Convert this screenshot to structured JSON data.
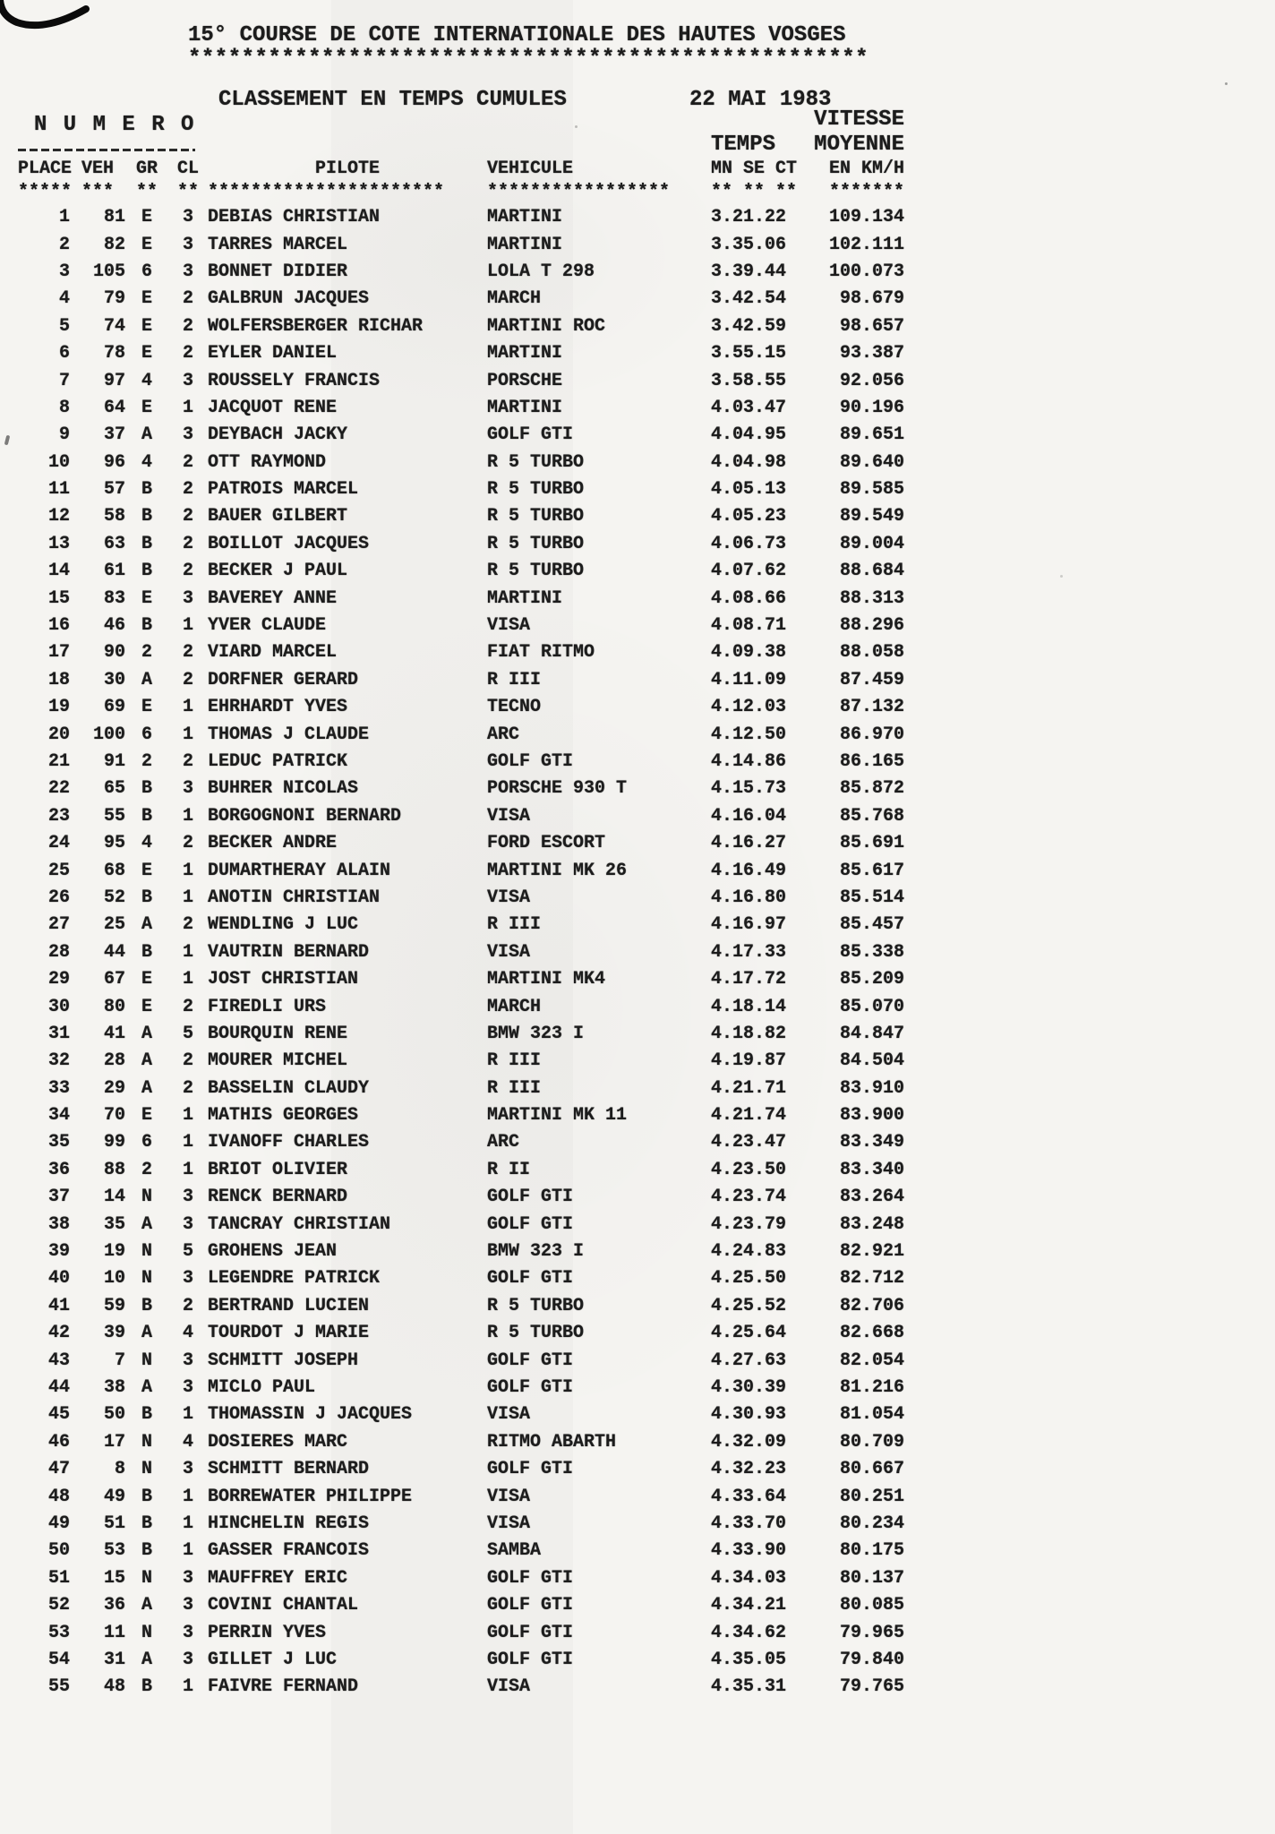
{
  "page": {
    "title": "15° COURSE DE COTE INTERNATIONALE DES HAUTES VOSGES",
    "title_underline": "***************************************************",
    "subtitle": "CLASSEMENT EN TEMPS CUMULES",
    "date": "22 MAI 1983",
    "numero_label": "N U M E R O",
    "temps_label": "TEMPS",
    "vitesse_label": "VITESSE",
    "moyenne_label": "MOYENNE",
    "col_headers": {
      "place": "PLACE",
      "veh": "VEH",
      "gr": "GR",
      "cl": "CL",
      "pilote": "PILOTE",
      "vehicule": "VEHICULE",
      "temps": "MN SE CT",
      "vitesse": "EN KM/H"
    },
    "separator_row": {
      "place": "*****",
      "veh": "***",
      "gr": "**",
      "cl": "**",
      "pilote": "**********************",
      "vehicule": "*****************",
      "temps": "** ** **",
      "vitesse": "*******"
    }
  },
  "results": [
    {
      "place": "1",
      "veh": "81",
      "gr": "E",
      "cl": "3",
      "pilote": "DEBIAS CHRISTIAN",
      "vehicule": "MARTINI",
      "temps": "3.21.22",
      "vitesse": "109.134"
    },
    {
      "place": "2",
      "veh": "82",
      "gr": "E",
      "cl": "3",
      "pilote": "TARRES MARCEL",
      "vehicule": "MARTINI",
      "temps": "3.35.06",
      "vitesse": "102.111"
    },
    {
      "place": "3",
      "veh": "105",
      "gr": "6",
      "cl": "3",
      "pilote": "BONNET DIDIER",
      "vehicule": "LOLA T 298",
      "temps": "3.39.44",
      "vitesse": "100.073"
    },
    {
      "place": "4",
      "veh": "79",
      "gr": "E",
      "cl": "2",
      "pilote": "GALBRUN JACQUES",
      "vehicule": "MARCH",
      "temps": "3.42.54",
      "vitesse": "98.679"
    },
    {
      "place": "5",
      "veh": "74",
      "gr": "E",
      "cl": "2",
      "pilote": "WOLFERSBERGER RICHAR",
      "vehicule": "MARTINI ROC",
      "temps": "3.42.59",
      "vitesse": "98.657"
    },
    {
      "place": "6",
      "veh": "78",
      "gr": "E",
      "cl": "2",
      "pilote": "EYLER DANIEL",
      "vehicule": "MARTINI",
      "temps": "3.55.15",
      "vitesse": "93.387"
    },
    {
      "place": "7",
      "veh": "97",
      "gr": "4",
      "cl": "3",
      "pilote": "ROUSSELY FRANCIS",
      "vehicule": "PORSCHE",
      "temps": "3.58.55",
      "vitesse": "92.056"
    },
    {
      "place": "8",
      "veh": "64",
      "gr": "E",
      "cl": "1",
      "pilote": "JACQUOT RENE",
      "vehicule": "MARTINI",
      "temps": "4.03.47",
      "vitesse": "90.196"
    },
    {
      "place": "9",
      "veh": "37",
      "gr": "A",
      "cl": "3",
      "pilote": "DEYBACH JACKY",
      "vehicule": "GOLF GTI",
      "temps": "4.04.95",
      "vitesse": "89.651"
    },
    {
      "place": "10",
      "veh": "96",
      "gr": "4",
      "cl": "2",
      "pilote": "OTT RAYMOND",
      "vehicule": "R 5 TURBO",
      "temps": "4.04.98",
      "vitesse": "89.640"
    },
    {
      "place": "11",
      "veh": "57",
      "gr": "B",
      "cl": "2",
      "pilote": "PATROIS MARCEL",
      "vehicule": "R 5 TURBO",
      "temps": "4.05.13",
      "vitesse": "89.585"
    },
    {
      "place": "12",
      "veh": "58",
      "gr": "B",
      "cl": "2",
      "pilote": "BAUER GILBERT",
      "vehicule": "R 5 TURBO",
      "temps": "4.05.23",
      "vitesse": "89.549"
    },
    {
      "place": "13",
      "veh": "63",
      "gr": "B",
      "cl": "2",
      "pilote": "BOILLOT JACQUES",
      "vehicule": "R 5 TURBO",
      "temps": "4.06.73",
      "vitesse": "89.004"
    },
    {
      "place": "14",
      "veh": "61",
      "gr": "B",
      "cl": "2",
      "pilote": "BECKER J PAUL",
      "vehicule": "R 5 TURBO",
      "temps": "4.07.62",
      "vitesse": "88.684"
    },
    {
      "place": "15",
      "veh": "83",
      "gr": "E",
      "cl": "3",
      "pilote": "BAVEREY ANNE",
      "vehicule": "MARTINI",
      "temps": "4.08.66",
      "vitesse": "88.313"
    },
    {
      "place": "16",
      "veh": "46",
      "gr": "B",
      "cl": "1",
      "pilote": "YVER CLAUDE",
      "vehicule": "VISA",
      "temps": "4.08.71",
      "vitesse": "88.296"
    },
    {
      "place": "17",
      "veh": "90",
      "gr": "2",
      "cl": "2",
      "pilote": "VIARD MARCEL",
      "vehicule": "FIAT RITMO",
      "temps": "4.09.38",
      "vitesse": "88.058"
    },
    {
      "place": "18",
      "veh": "30",
      "gr": "A",
      "cl": "2",
      "pilote": "DORFNER GERARD",
      "vehicule": "R III",
      "temps": "4.11.09",
      "vitesse": "87.459"
    },
    {
      "place": "19",
      "veh": "69",
      "gr": "E",
      "cl": "1",
      "pilote": "EHRHARDT YVES",
      "vehicule": "TECNO",
      "temps": "4.12.03",
      "vitesse": "87.132"
    },
    {
      "place": "20",
      "veh": "100",
      "gr": "6",
      "cl": "1",
      "pilote": "THOMAS J CLAUDE",
      "vehicule": "ARC",
      "temps": "4.12.50",
      "vitesse": "86.970"
    },
    {
      "place": "21",
      "veh": "91",
      "gr": "2",
      "cl": "2",
      "pilote": "LEDUC PATRICK",
      "vehicule": "GOLF GTI",
      "temps": "4.14.86",
      "vitesse": "86.165"
    },
    {
      "place": "22",
      "veh": "65",
      "gr": "B",
      "cl": "3",
      "pilote": "BUHRER NICOLAS",
      "vehicule": "PORSCHE 930 T",
      "temps": "4.15.73",
      "vitesse": "85.872"
    },
    {
      "place": "23",
      "veh": "55",
      "gr": "B",
      "cl": "1",
      "pilote": "BORGOGNONI BERNARD",
      "vehicule": "VISA",
      "temps": "4.16.04",
      "vitesse": "85.768"
    },
    {
      "place": "24",
      "veh": "95",
      "gr": "4",
      "cl": "2",
      "pilote": "BECKER ANDRE",
      "vehicule": "FORD ESCORT",
      "temps": "4.16.27",
      "vitesse": "85.691"
    },
    {
      "place": "25",
      "veh": "68",
      "gr": "E",
      "cl": "1",
      "pilote": "DUMARTHERAY ALAIN",
      "vehicule": "MARTINI MK 26",
      "temps": "4.16.49",
      "vitesse": "85.617"
    },
    {
      "place": "26",
      "veh": "52",
      "gr": "B",
      "cl": "1",
      "pilote": "ANOTIN CHRISTIAN",
      "vehicule": "VISA",
      "temps": "4.16.80",
      "vitesse": "85.514"
    },
    {
      "place": "27",
      "veh": "25",
      "gr": "A",
      "cl": "2",
      "pilote": "WENDLING J LUC",
      "vehicule": "R III",
      "temps": "4.16.97",
      "vitesse": "85.457"
    },
    {
      "place": "28",
      "veh": "44",
      "gr": "B",
      "cl": "1",
      "pilote": "VAUTRIN BERNARD",
      "vehicule": "VISA",
      "temps": "4.17.33",
      "vitesse": "85.338"
    },
    {
      "place": "29",
      "veh": "67",
      "gr": "E",
      "cl": "1",
      "pilote": "JOST CHRISTIAN",
      "vehicule": "MARTINI MK4",
      "temps": "4.17.72",
      "vitesse": "85.209"
    },
    {
      "place": "30",
      "veh": "80",
      "gr": "E",
      "cl": "2",
      "pilote": "FIREDLI URS",
      "vehicule": "MARCH",
      "temps": "4.18.14",
      "vitesse": "85.070"
    },
    {
      "place": "31",
      "veh": "41",
      "gr": "A",
      "cl": "5",
      "pilote": "BOURQUIN RENE",
      "vehicule": "BMW 323 I",
      "temps": "4.18.82",
      "vitesse": "84.847"
    },
    {
      "place": "32",
      "veh": "28",
      "gr": "A",
      "cl": "2",
      "pilote": "MOURER MICHEL",
      "vehicule": "R III",
      "temps": "4.19.87",
      "vitesse": "84.504"
    },
    {
      "place": "33",
      "veh": "29",
      "gr": "A",
      "cl": "2",
      "pilote": "BASSELIN CLAUDY",
      "vehicule": "R III",
      "temps": "4.21.71",
      "vitesse": "83.910"
    },
    {
      "place": "34",
      "veh": "70",
      "gr": "E",
      "cl": "1",
      "pilote": "MATHIS GEORGES",
      "vehicule": "MARTINI MK 11",
      "temps": "4.21.74",
      "vitesse": "83.900"
    },
    {
      "place": "35",
      "veh": "99",
      "gr": "6",
      "cl": "1",
      "pilote": "IVANOFF CHARLES",
      "vehicule": "ARC",
      "temps": "4.23.47",
      "vitesse": "83.349"
    },
    {
      "place": "36",
      "veh": "88",
      "gr": "2",
      "cl": "1",
      "pilote": "BRIOT OLIVIER",
      "vehicule": "R II",
      "temps": "4.23.50",
      "vitesse": "83.340"
    },
    {
      "place": "37",
      "veh": "14",
      "gr": "N",
      "cl": "3",
      "pilote": "RENCK BERNARD",
      "vehicule": "GOLF GTI",
      "temps": "4.23.74",
      "vitesse": "83.264"
    },
    {
      "place": "38",
      "veh": "35",
      "gr": "A",
      "cl": "3",
      "pilote": "TANCRAY CHRISTIAN",
      "vehicule": "GOLF GTI",
      "temps": "4.23.79",
      "vitesse": "83.248"
    },
    {
      "place": "39",
      "veh": "19",
      "gr": "N",
      "cl": "5",
      "pilote": "GROHENS JEAN",
      "vehicule": "BMW 323 I",
      "temps": "4.24.83",
      "vitesse": "82.921"
    },
    {
      "place": "40",
      "veh": "10",
      "gr": "N",
      "cl": "3",
      "pilote": "LEGENDRE PATRICK",
      "vehicule": "GOLF GTI",
      "temps": "4.25.50",
      "vitesse": "82.712"
    },
    {
      "place": "41",
      "veh": "59",
      "gr": "B",
      "cl": "2",
      "pilote": "BERTRAND LUCIEN",
      "vehicule": "R 5 TURBO",
      "temps": "4.25.52",
      "vitesse": "82.706"
    },
    {
      "place": "42",
      "veh": "39",
      "gr": "A",
      "cl": "4",
      "pilote": "TOURDOT J MARIE",
      "vehicule": "R 5 TURBO",
      "temps": "4.25.64",
      "vitesse": "82.668"
    },
    {
      "place": "43",
      "veh": "7",
      "gr": "N",
      "cl": "3",
      "pilote": "SCHMITT JOSEPH",
      "vehicule": "GOLF GTI",
      "temps": "4.27.63",
      "vitesse": "82.054"
    },
    {
      "place": "44",
      "veh": "38",
      "gr": "A",
      "cl": "3",
      "pilote": "MICLO PAUL",
      "vehicule": "GOLF GTI",
      "temps": "4.30.39",
      "vitesse": "81.216"
    },
    {
      "place": "45",
      "veh": "50",
      "gr": "B",
      "cl": "1",
      "pilote": "THOMASSIN J JACQUES",
      "vehicule": "VISA",
      "temps": "4.30.93",
      "vitesse": "81.054"
    },
    {
      "place": "46",
      "veh": "17",
      "gr": "N",
      "cl": "4",
      "pilote": "DOSIERES MARC",
      "vehicule": "RITMO ABARTH",
      "temps": "4.32.09",
      "vitesse": "80.709"
    },
    {
      "place": "47",
      "veh": "8",
      "gr": "N",
      "cl": "3",
      "pilote": "SCHMITT BERNARD",
      "vehicule": "GOLF GTI",
      "temps": "4.32.23",
      "vitesse": "80.667"
    },
    {
      "place": "48",
      "veh": "49",
      "gr": "B",
      "cl": "1",
      "pilote": "BORREWATER PHILIPPE",
      "vehicule": "VISA",
      "temps": "4.33.64",
      "vitesse": "80.251"
    },
    {
      "place": "49",
      "veh": "51",
      "gr": "B",
      "cl": "1",
      "pilote": "HINCHELIN REGIS",
      "vehicule": "VISA",
      "temps": "4.33.70",
      "vitesse": "80.234"
    },
    {
      "place": "50",
      "veh": "53",
      "gr": "B",
      "cl": "1",
      "pilote": "GASSER FRANCOIS",
      "vehicule": "SAMBA",
      "temps": "4.33.90",
      "vitesse": "80.175"
    },
    {
      "place": "51",
      "veh": "15",
      "gr": "N",
      "cl": "3",
      "pilote": "MAUFFREY ERIC",
      "vehicule": "GOLF GTI",
      "temps": "4.34.03",
      "vitesse": "80.137"
    },
    {
      "place": "52",
      "veh": "36",
      "gr": "A",
      "cl": "3",
      "pilote": "COVINI CHANTAL",
      "vehicule": "GOLF GTI",
      "temps": "4.34.21",
      "vitesse": "80.085"
    },
    {
      "place": "53",
      "veh": "11",
      "gr": "N",
      "cl": "3",
      "pilote": "PERRIN YVES",
      "vehicule": "GOLF GTI",
      "temps": "4.34.62",
      "vitesse": "79.965"
    },
    {
      "place": "54",
      "veh": "31",
      "gr": "A",
      "cl": "3",
      "pilote": "GILLET J LUC",
      "vehicule": "GOLF GTI",
      "temps": "4.35.05",
      "vitesse": "79.840"
    },
    {
      "place": "55",
      "veh": "48",
      "gr": "B",
      "cl": "1",
      "pilote": "FAIVRE FERNAND",
      "vehicule": "VISA",
      "temps": "4.35.31",
      "vitesse": "79.765"
    }
  ]
}
